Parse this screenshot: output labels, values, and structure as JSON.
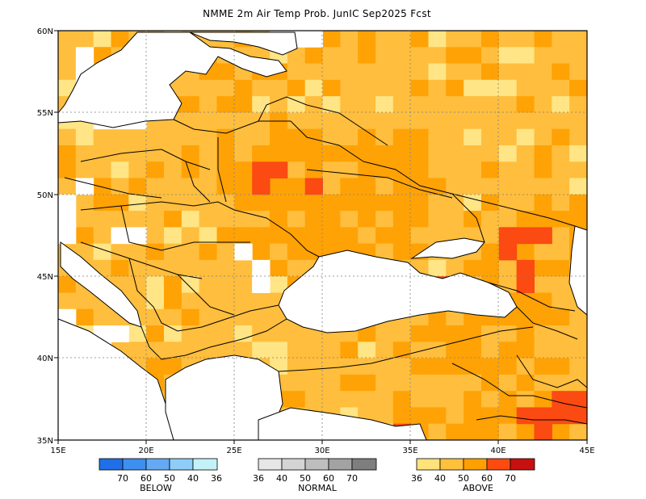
{
  "title": "NMME 2m Air Temp Prob. JunIC  Sep2025 Fcst",
  "map": {
    "lon_range": [
      15,
      45
    ],
    "lat_range": [
      35,
      60
    ],
    "grid": "dotted",
    "lat_labels": [
      "60N",
      "55N",
      "50N",
      "45N",
      "40N",
      "35N"
    ],
    "lon_labels": [
      "15E",
      "20E",
      "25E",
      "30E",
      "35E",
      "40E",
      "45E"
    ]
  },
  "legend": {
    "below": {
      "caption": "BELOW",
      "colors": [
        "#1f70e8",
        "#3d8ff0",
        "#63a9f5",
        "#8fcdf8",
        "#c2f2f8"
      ],
      "labels": [
        "70",
        "60",
        "50",
        "40",
        "36"
      ]
    },
    "normal": {
      "caption": "NORMAL",
      "colors": [
        "#e6e6e6",
        "#d4d4d4",
        "#bebebe",
        "#a3a3a3",
        "#7e7e7e"
      ],
      "labels": [
        "36",
        "40",
        "50",
        "60",
        "70"
      ]
    },
    "above": {
      "caption": "ABOVE",
      "colors": [
        "#ffe27a",
        "#ffc03c",
        "#ffa000",
        "#ff4a10",
        "#c81010"
      ],
      "labels": [
        "36",
        "40",
        "50",
        "60",
        "70"
      ]
    }
  },
  "colors": {
    "above_40": "#ffbe3d",
    "above_50": "#ffa205",
    "above_60": "#fb4a12",
    "above_36": "#ffe585"
  }
}
